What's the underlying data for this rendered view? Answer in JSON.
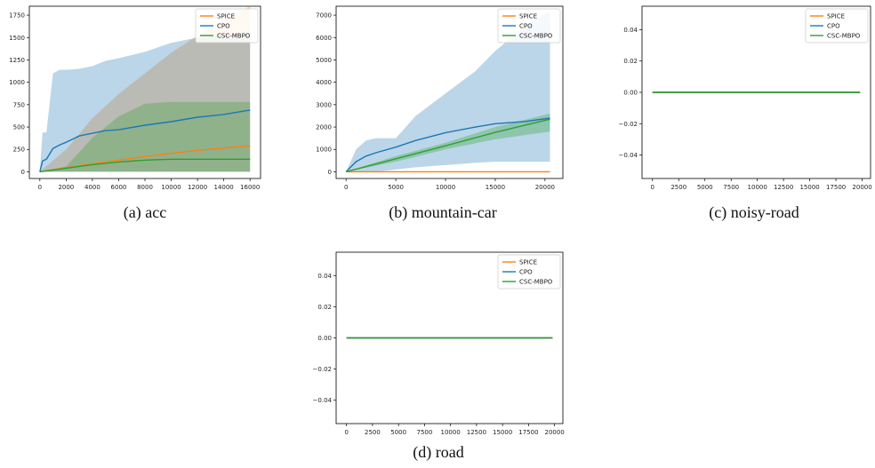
{
  "colors": {
    "spice": "#ff7f0e",
    "cpo": "#1f77b4",
    "cscmbpo": "#2ca02c"
  },
  "chart_data": [
    {
      "type": "line",
      "caption": "(a) acc",
      "xlim": [
        -800,
        16800
      ],
      "ylim": [
        -75,
        1850
      ],
      "xticks": [
        0,
        2000,
        4000,
        6000,
        8000,
        10000,
        12000,
        14000,
        16000
      ],
      "yticks": [
        0,
        250,
        500,
        750,
        1000,
        1250,
        1500,
        1750
      ],
      "xtick_labels": [
        "0",
        "2000",
        "4000",
        "6000",
        "8000",
        "10000",
        "12000",
        "14000",
        "16000"
      ],
      "ytick_labels": [
        "0",
        "250",
        "500",
        "750",
        "1000",
        "1250",
        "1500",
        "1750"
      ],
      "legend": "top-right",
      "series": [
        {
          "name": "SPICE",
          "color": "#ff7f0e",
          "x": [
            0,
            2000,
            4000,
            6000,
            8000,
            10000,
            12000,
            14000,
            16000
          ],
          "y": [
            0,
            45,
            90,
            130,
            170,
            205,
            240,
            265,
            290
          ],
          "lower": [
            0,
            0,
            0,
            0,
            0,
            0,
            0,
            0,
            0
          ],
          "upper": [
            0,
            250,
            600,
            870,
            1100,
            1330,
            1520,
            1700,
            1850
          ]
        },
        {
          "name": "CPO",
          "color": "#1f77b4",
          "x": [
            0,
            200,
            500,
            1000,
            1500,
            2000,
            3000,
            4000,
            5000,
            6000,
            8000,
            10000,
            12000,
            14000,
            16000
          ],
          "y": [
            0,
            120,
            140,
            260,
            300,
            330,
            400,
            430,
            460,
            470,
            520,
            560,
            610,
            640,
            690
          ],
          "lower": [
            0,
            0,
            0,
            0,
            0,
            0,
            0,
            0,
            0,
            0,
            0,
            0,
            0,
            0,
            0
          ],
          "upper": [
            0,
            440,
            440,
            1100,
            1140,
            1140,
            1150,
            1180,
            1240,
            1270,
            1340,
            1440,
            1500,
            1530,
            1530
          ]
        },
        {
          "name": "CSC-MBPO",
          "color": "#2ca02c",
          "x": [
            0,
            2000,
            4000,
            6000,
            8000,
            10000,
            12000,
            14000,
            16000
          ],
          "y": [
            0,
            40,
            80,
            110,
            130,
            140,
            140,
            140,
            140
          ],
          "lower": [
            0,
            0,
            0,
            0,
            0,
            0,
            0,
            0,
            0
          ],
          "upper": [
            0,
            60,
            380,
            620,
            760,
            780,
            780,
            780,
            780
          ]
        }
      ]
    },
    {
      "type": "line",
      "caption": "(b) mountain-car",
      "xlim": [
        -1000,
        21800
      ],
      "ylim": [
        -300,
        7400
      ],
      "xticks": [
        0,
        5000,
        10000,
        15000,
        20000
      ],
      "yticks": [
        0,
        1000,
        2000,
        3000,
        4000,
        5000,
        6000,
        7000
      ],
      "xtick_labels": [
        "0",
        "5000",
        "10000",
        "15000",
        "20000"
      ],
      "ytick_labels": [
        "0",
        "1000",
        "2000",
        "3000",
        "4000",
        "5000",
        "6000",
        "7000"
      ],
      "legend": "top-right",
      "series": [
        {
          "name": "SPICE",
          "color": "#ff7f0e",
          "x": [
            0,
            5000,
            10000,
            15000,
            20500
          ],
          "y": [
            0,
            0,
            0,
            0,
            0
          ]
        },
        {
          "name": "CPO",
          "color": "#1f77b4",
          "x": [
            0,
            1000,
            2000,
            3000,
            5000,
            7000,
            10000,
            13000,
            15000,
            18000,
            20500
          ],
          "y": [
            0,
            450,
            700,
            850,
            1100,
            1400,
            1750,
            2000,
            2150,
            2250,
            2400
          ],
          "lower": [
            0,
            0,
            0,
            0,
            100,
            200,
            300,
            400,
            450,
            450,
            450
          ],
          "upper": [
            0,
            1000,
            1400,
            1500,
            1500,
            2500,
            3500,
            4500,
            5400,
            6500,
            7200
          ]
        },
        {
          "name": "CSC-MBPO",
          "color": "#2ca02c",
          "x": [
            0,
            5000,
            10000,
            15000,
            20500
          ],
          "y": [
            0,
            580,
            1160,
            1760,
            2350
          ],
          "lower": [
            0,
            450,
            1000,
            1450,
            1800
          ],
          "upper": [
            0,
            700,
            1300,
            2000,
            2600
          ]
        }
      ]
    },
    {
      "type": "line",
      "caption": "(c) noisy-road",
      "xlim": [
        -1000,
        20800
      ],
      "ylim": [
        -0.055,
        0.055
      ],
      "xticks": [
        0,
        2500,
        5000,
        7500,
        10000,
        12500,
        15000,
        17500,
        20000
      ],
      "yticks": [
        -0.04,
        -0.02,
        0.0,
        0.02,
        0.04
      ],
      "xtick_labels": [
        "0",
        "2500",
        "5000",
        "7500",
        "10000",
        "12500",
        "15000",
        "17500",
        "20000"
      ],
      "ytick_labels": [
        "−0.04",
        "−0.02",
        "0.00",
        "0.02",
        "0.04"
      ],
      "legend": "top-right",
      "series": [
        {
          "name": "SPICE",
          "color": "#ff7f0e",
          "x": [
            0,
            19800
          ],
          "y": [
            0,
            0
          ]
        },
        {
          "name": "CPO",
          "color": "#1f77b4",
          "x": [
            0,
            19800
          ],
          "y": [
            0,
            0
          ]
        },
        {
          "name": "CSC-MBPO",
          "color": "#2ca02c",
          "x": [
            0,
            19800
          ],
          "y": [
            0,
            0
          ]
        }
      ]
    },
    {
      "type": "line",
      "caption": "(d) road",
      "xlim": [
        -1000,
        20800
      ],
      "ylim": [
        -0.055,
        0.055
      ],
      "xticks": [
        0,
        2500,
        5000,
        7500,
        10000,
        12500,
        15000,
        17500,
        20000
      ],
      "yticks": [
        -0.04,
        -0.02,
        0.0,
        0.02,
        0.04
      ],
      "xtick_labels": [
        "0",
        "2500",
        "5000",
        "7500",
        "10000",
        "12500",
        "15000",
        "17500",
        "20000"
      ],
      "ytick_labels": [
        "−0.04",
        "−0.02",
        "0.00",
        "0.02",
        "0.04"
      ],
      "legend": "top-right",
      "series": [
        {
          "name": "SPICE",
          "color": "#ff7f0e",
          "x": [
            0,
            19800
          ],
          "y": [
            0,
            0
          ]
        },
        {
          "name": "CPO",
          "color": "#1f77b4",
          "x": [
            0,
            19800
          ],
          "y": [
            0,
            0
          ]
        },
        {
          "name": "CSC-MBPO",
          "color": "#2ca02c",
          "x": [
            0,
            19800
          ],
          "y": [
            0,
            0
          ]
        }
      ]
    }
  ]
}
